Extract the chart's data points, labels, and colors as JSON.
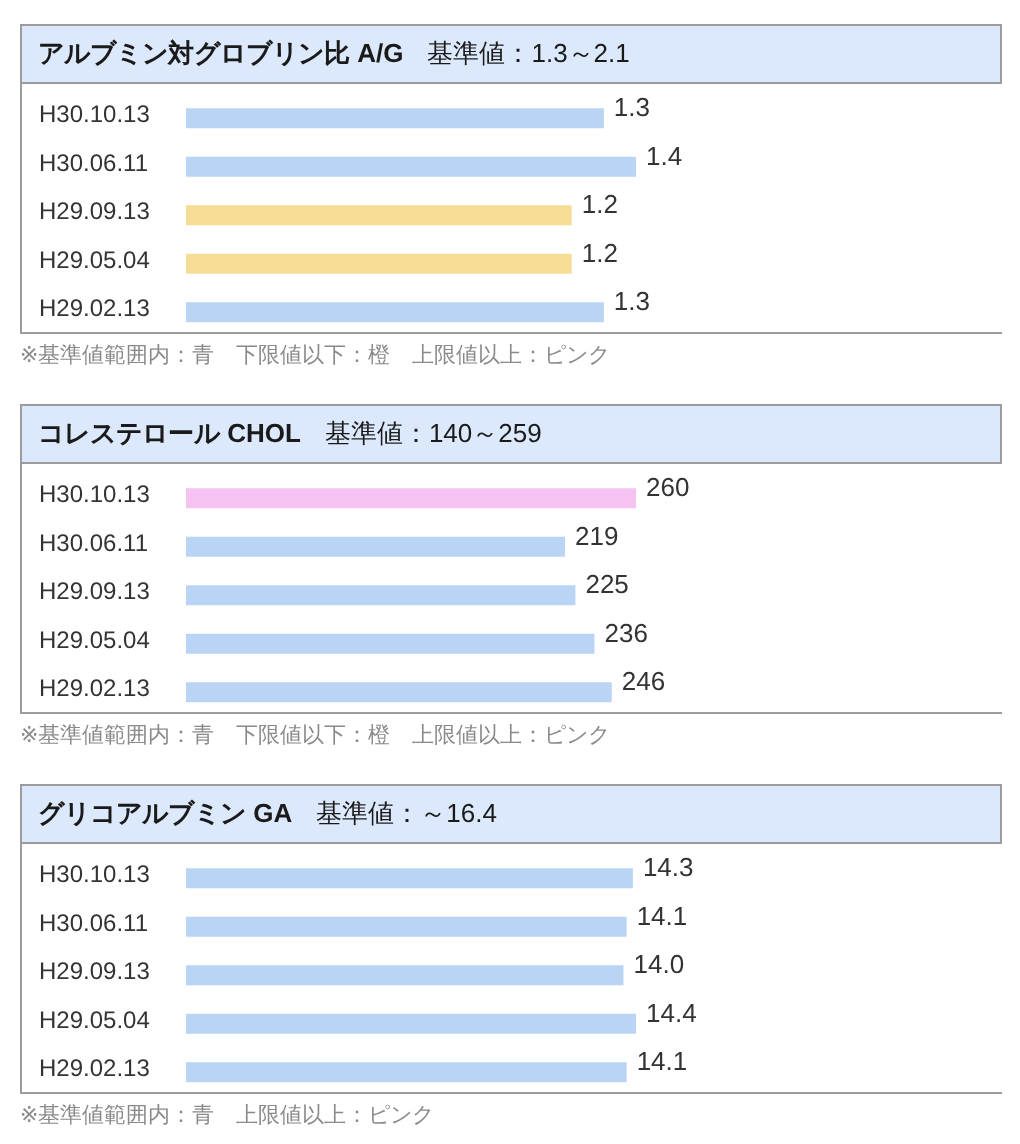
{
  "chart_data": [
    {
      "type": "bar",
      "orientation": "horizontal",
      "title": "アルブミン対グロブリン比 A/G",
      "subtitle": "基準値：1.3～2.1",
      "categories": [
        "H30.10.13",
        "H30.06.11",
        "H29.09.13",
        "H29.05.04",
        "H29.02.13"
      ],
      "values": [
        1.3,
        1.4,
        1.2,
        1.2,
        1.3
      ],
      "colors": [
        "#b9d4f4",
        "#b9d4f4",
        "#f7dc96",
        "#f7dc96",
        "#b9d4f4"
      ],
      "tick_labels": "y",
      "data_labels": true,
      "annotations": [
        "※基準値範囲内：青　下限値以下：橙　上限値以上：ピンク"
      ]
    },
    {
      "type": "bar",
      "orientation": "horizontal",
      "title": "コレステロール CHOL",
      "subtitle": "基準値：140～259",
      "categories": [
        "H30.10.13",
        "H30.06.11",
        "H29.09.13",
        "H29.05.04",
        "H29.02.13"
      ],
      "values": [
        260,
        219,
        225,
        236,
        246
      ],
      "colors": [
        "#f5c2f1",
        "#b9d4f4",
        "#b9d4f4",
        "#b9d4f4",
        "#b9d4f4"
      ],
      "tick_labels": "y",
      "data_labels": true,
      "annotations": [
        "※基準値範囲内：青　下限値以下：橙　上限値以上：ピンク"
      ]
    },
    {
      "type": "bar",
      "orientation": "horizontal",
      "title": "グリコアルブミン GA",
      "subtitle": "基準値：～16.4",
      "categories": [
        "H30.10.13",
        "H30.06.11",
        "H29.09.13",
        "H29.05.04",
        "H29.02.13"
      ],
      "values": [
        14.3,
        14.1,
        14.0,
        14.4,
        14.1
      ],
      "value_labels": [
        "14.3",
        "14.1",
        "14.0",
        "14.4",
        "14.1"
      ],
      "colors": [
        "#b9d4f4",
        "#b9d4f4",
        "#b9d4f4",
        "#b9d4f4",
        "#b9d4f4"
      ],
      "tick_labels": "y",
      "annotations": [
        "※基準値範囲内：青　上限値以上：ピンク"
      ]
    }
  ]
}
